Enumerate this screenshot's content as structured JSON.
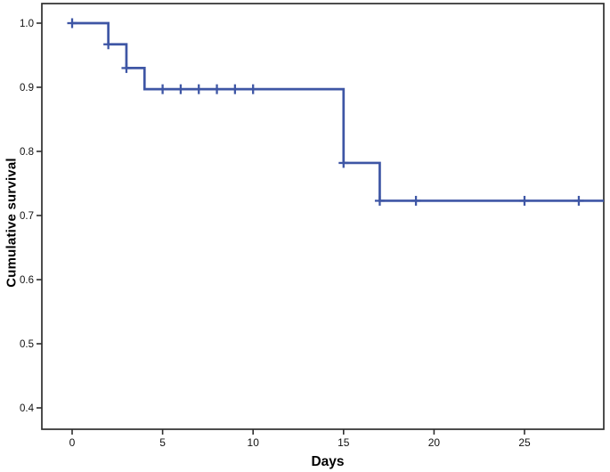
{
  "figure": {
    "x_axis_title": "Days",
    "y_axis_title": "Cumulative survival",
    "frame_color": "#2e2e2e",
    "background_color": "#ffffff"
  },
  "chart_data": {
    "type": "line",
    "subtype": "kaplan_meier_step_function",
    "title": "",
    "xlabel": "Days",
    "ylabel": "Cumulative survival",
    "grid": false,
    "legend": "none",
    "xlim": [
      -1.67,
      29.4
    ],
    "ylim": [
      0.367,
      1.031
    ],
    "x_ticks": [
      0,
      5,
      10,
      15,
      20,
      25
    ],
    "x_tick_labels": [
      "0",
      "5",
      "10",
      "15",
      "20",
      "25"
    ],
    "y_ticks": [
      1.0,
      0.9,
      0.8,
      0.7,
      0.6,
      0.5,
      0.4
    ],
    "y_tick_labels": [
      "1.0",
      "0.9",
      "0.8",
      "0.7",
      "0.6",
      "0.5",
      "0.4"
    ],
    "series": [
      {
        "name": "Cumulative survival",
        "color": "#3e56a5",
        "start": {
          "day": 0,
          "survival": 1.0
        },
        "steps": [
          {
            "day": 2,
            "survival": 0.967
          },
          {
            "day": 3,
            "survival": 0.93
          },
          {
            "day": 4,
            "survival": 0.897
          },
          {
            "day": 15,
            "survival": 0.782
          },
          {
            "day": 17,
            "survival": 0.723
          }
        ],
        "end_day": 29.4,
        "censor_marks": [
          {
            "day": 0,
            "survival": 1.0
          },
          {
            "day": 2,
            "survival": 0.967
          },
          {
            "day": 3,
            "survival": 0.93
          },
          {
            "day": 5,
            "survival": 0.897
          },
          {
            "day": 6,
            "survival": 0.897
          },
          {
            "day": 7,
            "survival": 0.897
          },
          {
            "day": 8,
            "survival": 0.897
          },
          {
            "day": 9,
            "survival": 0.897
          },
          {
            "day": 10,
            "survival": 0.897
          },
          {
            "day": 15,
            "survival": 0.782
          },
          {
            "day": 17,
            "survival": 0.723
          },
          {
            "day": 19,
            "survival": 0.723
          },
          {
            "day": 25,
            "survival": 0.723
          },
          {
            "day": 28,
            "survival": 0.723
          }
        ]
      }
    ]
  }
}
